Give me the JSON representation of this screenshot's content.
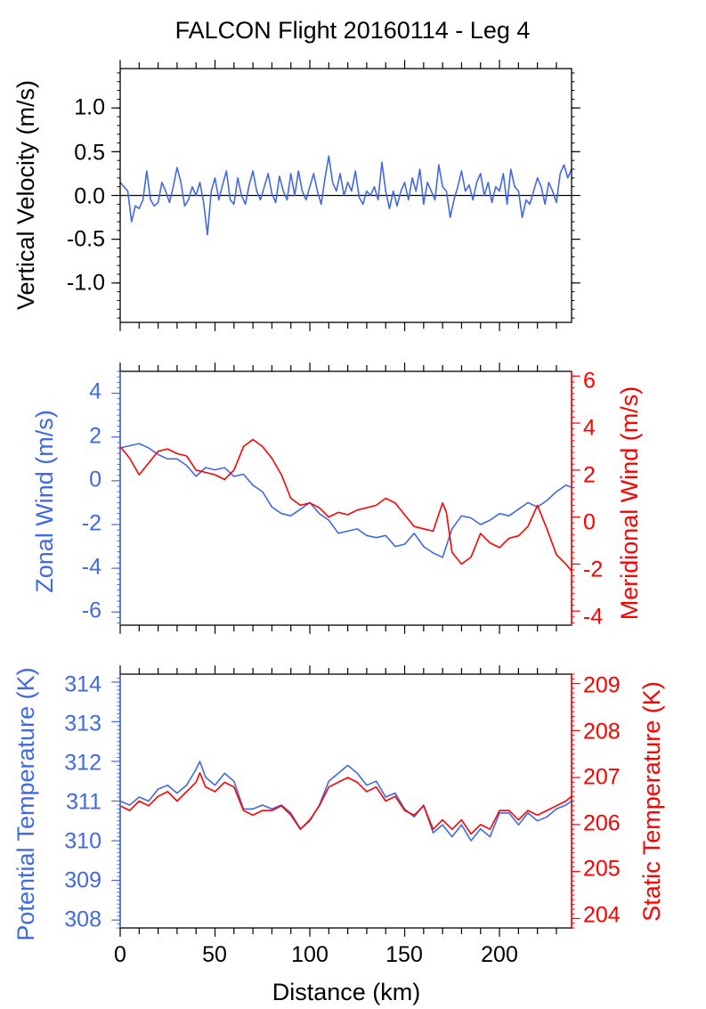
{
  "figure": {
    "title": "FALCON Flight 20160114 - Leg 4"
  },
  "colors": {
    "blue": "#4169e1",
    "red": "#ff0000",
    "axis": "#000000"
  },
  "chart_data": [
    {
      "type": "line",
      "ylabel": "Vertical Velocity (m/s)",
      "xlim": [
        0,
        238
      ],
      "ylim": [
        -1.45,
        1.45
      ],
      "yticks": [
        1.0,
        0.5,
        0.0,
        -0.5,
        -1.0
      ],
      "ytick_labels": [
        "1.0",
        "0.5",
        "0.0",
        "-0.5",
        "-1.0"
      ],
      "zero_line": true,
      "series": [
        {
          "color": "#4169e1",
          "x": [
            0,
            2,
            4,
            6,
            8,
            10,
            12,
            14,
            16,
            18,
            20,
            22,
            24,
            26,
            28,
            30,
            32,
            34,
            36,
            38,
            40,
            42,
            44,
            46,
            48,
            50,
            52,
            54,
            56,
            58,
            60,
            62,
            64,
            66,
            68,
            70,
            72,
            74,
            76,
            78,
            80,
            82,
            84,
            86,
            88,
            90,
            92,
            94,
            96,
            98,
            100,
            102,
            104,
            106,
            108,
            110,
            112,
            114,
            116,
            118,
            120,
            122,
            124,
            126,
            128,
            130,
            132,
            134,
            136,
            138,
            140,
            142,
            144,
            146,
            148,
            150,
            152,
            154,
            156,
            158,
            160,
            162,
            164,
            166,
            168,
            170,
            172,
            174,
            176,
            178,
            180,
            182,
            184,
            186,
            188,
            190,
            192,
            194,
            196,
            198,
            200,
            202,
            204,
            206,
            208,
            210,
            212,
            214,
            216,
            218,
            220,
            222,
            224,
            226,
            228,
            230,
            232,
            234,
            236,
            238
          ],
          "values": [
            0.15,
            0.1,
            0.05,
            -0.3,
            -0.12,
            -0.15,
            -0.05,
            0.28,
            -0.05,
            -0.12,
            -0.08,
            0.15,
            0.05,
            -0.08,
            0.1,
            0.32,
            0.15,
            -0.12,
            -0.05,
            0.1,
            0.0,
            0.15,
            -0.08,
            -0.45,
            0.05,
            0.2,
            -0.05,
            0.12,
            0.28,
            -0.05,
            -0.1,
            0.2,
            0.0,
            -0.1,
            0.12,
            0.28,
            0.05,
            -0.05,
            0.1,
            0.25,
            0.02,
            -0.08,
            0.22,
            0.05,
            -0.05,
            0.25,
            0.0,
            0.28,
            0.05,
            -0.05,
            0.1,
            0.25,
            0.05,
            -0.1,
            0.2,
            0.45,
            0.15,
            0.05,
            0.25,
            0.0,
            0.15,
            0.05,
            0.28,
            -0.02,
            -0.1,
            0.05,
            0.0,
            0.1,
            -0.05,
            0.38,
            0.05,
            -0.15,
            0.05,
            -0.12,
            0.05,
            0.15,
            -0.05,
            0.2,
            0.05,
            0.3,
            -0.1,
            0.15,
            0.05,
            -0.05,
            0.35,
            0.1,
            0.05,
            -0.25,
            -0.05,
            0.1,
            0.28,
            0.05,
            0.12,
            -0.05,
            0.15,
            0.25,
            0.0,
            0.15,
            -0.08,
            0.1,
            0.05,
            0.25,
            -0.1,
            0.3,
            0.1,
            0.05,
            -0.25,
            -0.05,
            -0.1,
            0.05,
            0.2,
            0.1,
            -0.1,
            0.15,
            0.05,
            -0.08,
            0.25,
            0.35,
            0.2,
            0.3
          ]
        }
      ]
    },
    {
      "type": "line",
      "ylabel": "Zonal Wind (m/s)",
      "ylabel_right": "Meridional Wind (m/s)",
      "xlim": [
        0,
        238
      ],
      "ylim": [
        -6.6,
        5.0
      ],
      "yticks": [
        4,
        2,
        0,
        -2,
        -4,
        -6
      ],
      "ytick_labels": [
        "4",
        "2",
        "0",
        "-2",
        "-4",
        "-6"
      ],
      "ylim_right": [
        -4.6,
        6.2
      ],
      "yticks_right": [
        6,
        4,
        2,
        0,
        -2,
        -4
      ],
      "ytick_labels_right": [
        "6",
        "4",
        "2",
        "0",
        "-2",
        "-4"
      ],
      "series": [
        {
          "color": "#4169e1",
          "axis": "left",
          "x": [
            0,
            5,
            10,
            15,
            20,
            25,
            30,
            35,
            40,
            45,
            50,
            55,
            60,
            65,
            70,
            75,
            80,
            85,
            90,
            95,
            100,
            105,
            110,
            115,
            120,
            125,
            130,
            135,
            140,
            145,
            150,
            155,
            160,
            165,
            170,
            175,
            180,
            185,
            190,
            195,
            200,
            205,
            210,
            215,
            220,
            225,
            230,
            235,
            238
          ],
          "values": [
            1.5,
            1.6,
            1.7,
            1.5,
            1.2,
            1.0,
            1.0,
            0.7,
            0.2,
            0.6,
            0.5,
            0.6,
            0.2,
            0.3,
            -0.2,
            -0.5,
            -1.2,
            -1.5,
            -1.6,
            -1.3,
            -1.0,
            -1.5,
            -1.8,
            -2.4,
            -2.3,
            -2.2,
            -2.5,
            -2.6,
            -2.5,
            -3.0,
            -2.9,
            -2.4,
            -3.0,
            -3.3,
            -3.5,
            -2.2,
            -1.6,
            -1.7,
            -2.0,
            -1.8,
            -1.5,
            -1.6,
            -1.3,
            -1.0,
            -1.2,
            -0.9,
            -0.5,
            -0.2,
            -0.3
          ]
        },
        {
          "color": "#ff0000",
          "axis": "right",
          "x": [
            0,
            5,
            10,
            15,
            20,
            25,
            30,
            35,
            40,
            45,
            50,
            55,
            60,
            62,
            65,
            70,
            75,
            80,
            85,
            90,
            95,
            100,
            105,
            110,
            115,
            120,
            125,
            130,
            135,
            140,
            145,
            150,
            155,
            160,
            165,
            170,
            172,
            175,
            180,
            185,
            190,
            195,
            200,
            205,
            210,
            215,
            220,
            225,
            230,
            235,
            238
          ],
          "values": [
            3.0,
            2.5,
            1.8,
            2.3,
            2.8,
            2.9,
            2.7,
            2.6,
            2.0,
            1.9,
            1.8,
            1.6,
            2.0,
            2.4,
            3.0,
            3.3,
            3.0,
            2.5,
            1.8,
            0.8,
            0.5,
            0.6,
            0.4,
            0.0,
            0.2,
            0.1,
            0.3,
            0.4,
            0.5,
            0.8,
            0.6,
            0.1,
            -0.4,
            -0.5,
            -0.6,
            0.6,
            0.2,
            -1.5,
            -2.0,
            -1.7,
            -0.7,
            -1.1,
            -1.3,
            -0.9,
            -0.8,
            -0.4,
            0.5,
            -0.5,
            -1.6,
            -2.0,
            -2.3
          ]
        }
      ]
    },
    {
      "type": "line",
      "ylabel": "Potential Temperature (K)",
      "ylabel_right": "Static Temperature (K)",
      "xlim": [
        0,
        238
      ],
      "ylim": [
        307.8,
        314.2
      ],
      "yticks": [
        314,
        313,
        312,
        311,
        310,
        309,
        308
      ],
      "ytick_labels": [
        "314",
        "313",
        "312",
        "311",
        "310",
        "309",
        "308"
      ],
      "ylim_right": [
        203.8,
        209.2
      ],
      "yticks_right": [
        209,
        208,
        207,
        206,
        205,
        204
      ],
      "ytick_labels_right": [
        "209",
        "208",
        "207",
        "206",
        "205",
        "204"
      ],
      "series": [
        {
          "color": "#4169e1",
          "axis": "left",
          "x": [
            0,
            5,
            10,
            15,
            20,
            25,
            30,
            35,
            40,
            42,
            45,
            50,
            55,
            60,
            65,
            70,
            75,
            80,
            85,
            90,
            95,
            100,
            105,
            110,
            115,
            120,
            125,
            130,
            135,
            140,
            145,
            150,
            155,
            160,
            165,
            170,
            175,
            180,
            185,
            190,
            195,
            200,
            205,
            210,
            215,
            220,
            225,
            230,
            235,
            238
          ],
          "values": [
            311.0,
            310.9,
            311.1,
            311.0,
            311.3,
            311.4,
            311.2,
            311.4,
            311.8,
            312.0,
            311.6,
            311.4,
            311.7,
            311.5,
            310.8,
            310.8,
            310.9,
            310.8,
            310.9,
            310.7,
            310.3,
            310.5,
            310.9,
            311.5,
            311.7,
            311.9,
            311.7,
            311.4,
            311.5,
            311.1,
            311.2,
            310.8,
            310.6,
            310.9,
            310.2,
            310.4,
            310.1,
            310.4,
            310.0,
            310.3,
            310.1,
            310.7,
            310.7,
            310.4,
            310.7,
            310.5,
            310.6,
            310.8,
            310.9,
            311.0
          ]
        },
        {
          "color": "#ff0000",
          "axis": "right",
          "x": [
            0,
            5,
            10,
            15,
            20,
            25,
            30,
            35,
            40,
            42,
            45,
            50,
            55,
            60,
            65,
            70,
            75,
            80,
            85,
            90,
            95,
            100,
            105,
            110,
            115,
            120,
            125,
            130,
            135,
            140,
            145,
            150,
            155,
            160,
            165,
            170,
            175,
            180,
            185,
            190,
            195,
            200,
            205,
            210,
            215,
            220,
            225,
            230,
            235,
            238
          ],
          "values": [
            206.4,
            206.3,
            206.5,
            206.4,
            206.6,
            206.7,
            206.5,
            206.7,
            206.9,
            207.1,
            206.8,
            206.7,
            206.9,
            206.8,
            206.3,
            206.2,
            206.3,
            206.3,
            206.4,
            206.2,
            205.9,
            206.1,
            206.4,
            206.8,
            206.9,
            207.0,
            206.9,
            206.7,
            206.8,
            206.5,
            206.6,
            206.3,
            206.2,
            206.4,
            205.9,
            206.1,
            205.9,
            206.1,
            205.8,
            206.0,
            205.9,
            206.3,
            206.3,
            206.1,
            206.3,
            206.2,
            206.3,
            206.4,
            206.5,
            206.6
          ]
        }
      ]
    }
  ],
  "xaxis": {
    "label": "Distance (km)",
    "ticks": [
      0,
      50,
      100,
      150,
      200
    ],
    "tick_labels": [
      "0",
      "50",
      "100",
      "150",
      "200"
    ]
  }
}
